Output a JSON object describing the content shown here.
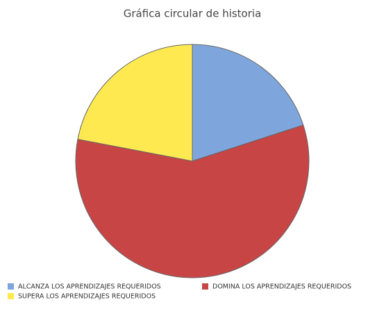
{
  "chart_data": {
    "type": "pie",
    "title": "Gráfica circular de historia",
    "categories": [
      "ALCANZA LOS APRENDIZAJES REQUERIDOS",
      "DOMINA LOS APRENDIZAJES REQUERIDOS",
      "SUPERA LOS APRENDIZAJES REQUERIDOS"
    ],
    "values": [
      20,
      58,
      22
    ],
    "colors": [
      "#7ea6dc",
      "#c84545",
      "#feea50"
    ],
    "legend": "bottom"
  }
}
